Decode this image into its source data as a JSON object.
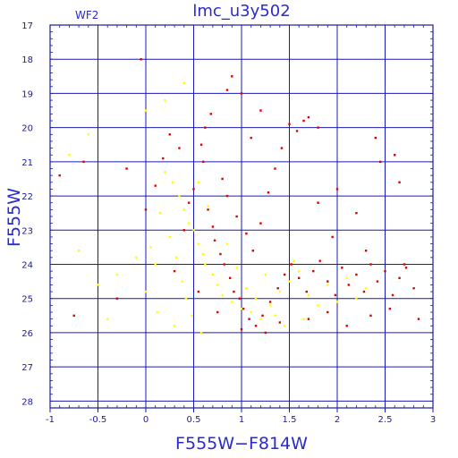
{
  "chart_data": {
    "type": "scatter",
    "title": "lmc_u3y502",
    "annotation": "WF2",
    "xlabel": "F555W−F814W",
    "ylabel": "F555W",
    "xlim": [
      -1,
      3
    ],
    "ylim": [
      28.2,
      17
    ],
    "y_inverted": true,
    "grid": true,
    "x_ticks": [
      -1,
      -0.5,
      0,
      0.5,
      1,
      1.5,
      2,
      2.5,
      3
    ],
    "x_tick_labels": [
      "-1",
      "-0.5",
      "0",
      "0.5",
      "1",
      "1.5",
      "2",
      "2.5",
      "3"
    ],
    "y_ticks": [
      17,
      18,
      19,
      20,
      21,
      22,
      23,
      24,
      25,
      26,
      27,
      28
    ],
    "y_tick_labels": [
      "17",
      "18",
      "19",
      "20",
      "21",
      "22",
      "23",
      "24",
      "25",
      "26",
      "27",
      "28"
    ],
    "series": [
      {
        "color": "#ffff00",
        "points": [
          [
            0.2,
            21.3
          ],
          [
            0.28,
            21.6
          ],
          [
            0.35,
            22.0
          ],
          [
            0.4,
            22.4
          ],
          [
            0.45,
            22.8
          ],
          [
            0.5,
            23.0
          ],
          [
            0.55,
            23.4
          ],
          [
            0.6,
            23.7
          ],
          [
            0.62,
            24.0
          ],
          [
            0.7,
            24.3
          ],
          [
            0.75,
            24.6
          ],
          [
            0.8,
            24.9
          ],
          [
            0.9,
            25.1
          ],
          [
            1.0,
            25.3
          ],
          [
            1.1,
            25.4
          ],
          [
            1.2,
            25.6
          ],
          [
            1.3,
            25.2
          ],
          [
            1.4,
            24.8
          ],
          [
            1.5,
            24.5
          ],
          [
            1.6,
            24.2
          ],
          [
            1.7,
            24.9
          ],
          [
            1.8,
            25.2
          ],
          [
            1.9,
            24.6
          ],
          [
            2.0,
            25.1
          ],
          [
            2.1,
            24.4
          ],
          [
            2.2,
            25.0
          ],
          [
            2.3,
            24.7
          ],
          [
            0.15,
            22.5
          ],
          [
            0.25,
            23.2
          ],
          [
            0.32,
            23.8
          ],
          [
            0.38,
            24.5
          ],
          [
            0.42,
            25.0
          ],
          [
            0.48,
            25.5
          ],
          [
            0.1,
            24.0
          ],
          [
            0.05,
            23.5
          ],
          [
            0.0,
            24.8
          ],
          [
            -0.1,
            23.8
          ],
          [
            -0.3,
            24.3
          ],
          [
            -0.5,
            24.6
          ],
          [
            -0.7,
            23.6
          ],
          [
            -0.8,
            20.8
          ],
          [
            -0.6,
            20.2
          ],
          [
            0.0,
            19.5
          ],
          [
            0.2,
            19.2
          ],
          [
            0.4,
            18.7
          ],
          [
            0.55,
            21.6
          ],
          [
            0.65,
            22.3
          ],
          [
            0.85,
            23.4
          ],
          [
            0.95,
            24.1
          ],
          [
            1.05,
            24.7
          ],
          [
            1.15,
            25.0
          ],
          [
            1.25,
            24.3
          ],
          [
            1.35,
            25.5
          ],
          [
            1.45,
            25.8
          ],
          [
            1.55,
            23.9
          ],
          [
            1.65,
            25.6
          ],
          [
            0.3,
            25.8
          ],
          [
            0.12,
            25.4
          ],
          [
            -0.4,
            25.6
          ],
          [
            0.58,
            26.0
          ]
        ]
      },
      {
        "color": "#dd0000",
        "points": [
          [
            0.65,
            22.4
          ],
          [
            0.7,
            22.9
          ],
          [
            0.72,
            23.3
          ],
          [
            0.78,
            23.7
          ],
          [
            0.82,
            24.0
          ],
          [
            0.88,
            24.4
          ],
          [
            0.92,
            24.8
          ],
          [
            0.98,
            25.0
          ],
          [
            1.02,
            25.3
          ],
          [
            1.08,
            25.6
          ],
          [
            1.15,
            25.8
          ],
          [
            1.22,
            25.5
          ],
          [
            1.3,
            25.1
          ],
          [
            1.38,
            24.7
          ],
          [
            1.45,
            24.3
          ],
          [
            1.52,
            24.0
          ],
          [
            1.6,
            24.4
          ],
          [
            1.68,
            24.8
          ],
          [
            1.75,
            24.2
          ],
          [
            1.82,
            23.9
          ],
          [
            1.9,
            24.5
          ],
          [
            1.98,
            24.9
          ],
          [
            2.05,
            24.1
          ],
          [
            2.12,
            24.6
          ],
          [
            2.2,
            24.3
          ],
          [
            2.28,
            24.8
          ],
          [
            2.35,
            24.0
          ],
          [
            2.42,
            24.5
          ],
          [
            2.5,
            24.2
          ],
          [
            2.58,
            24.9
          ],
          [
            2.65,
            24.4
          ],
          [
            2.72,
            24.1
          ],
          [
            2.8,
            24.7
          ],
          [
            0.6,
            21.0
          ],
          [
            0.58,
            20.5
          ],
          [
            0.62,
            20.0
          ],
          [
            0.68,
            19.6
          ],
          [
            0.8,
            21.5
          ],
          [
            0.85,
            22.0
          ],
          [
            0.95,
            22.6
          ],
          [
            1.05,
            23.1
          ],
          [
            1.12,
            23.6
          ],
          [
            1.2,
            22.8
          ],
          [
            1.28,
            21.9
          ],
          [
            1.35,
            21.2
          ],
          [
            1.42,
            20.6
          ],
          [
            1.5,
            19.9
          ],
          [
            1.58,
            20.1
          ],
          [
            1.65,
            19.8
          ],
          [
            1.2,
            19.5
          ],
          [
            1.1,
            20.3
          ],
          [
            1.0,
            19.0
          ],
          [
            0.9,
            18.5
          ],
          [
            0.5,
            21.8
          ],
          [
            0.45,
            22.2
          ],
          [
            0.4,
            23.0
          ],
          [
            0.35,
            20.6
          ],
          [
            0.25,
            20.2
          ],
          [
            0.18,
            20.9
          ],
          [
            0.1,
            21.7
          ],
          [
            0.0,
            22.4
          ],
          [
            -0.2,
            21.2
          ],
          [
            -0.65,
            21.0
          ],
          [
            -0.9,
            21.4
          ],
          [
            -0.75,
            25.5
          ],
          [
            -0.3,
            25.0
          ],
          [
            0.3,
            24.2
          ],
          [
            0.55,
            24.8
          ],
          [
            0.75,
            25.4
          ],
          [
            1.0,
            25.9
          ],
          [
            1.25,
            26.0
          ],
          [
            1.4,
            25.7
          ],
          [
            1.7,
            25.6
          ],
          [
            1.9,
            25.4
          ],
          [
            2.1,
            25.8
          ],
          [
            2.35,
            25.5
          ],
          [
            2.55,
            25.3
          ],
          [
            2.7,
            24.0
          ],
          [
            2.85,
            25.6
          ],
          [
            2.45,
            21.0
          ],
          [
            2.6,
            20.8
          ],
          [
            2.4,
            20.3
          ],
          [
            2.2,
            22.5
          ],
          [
            2.0,
            21.8
          ],
          [
            1.8,
            22.2
          ],
          [
            1.95,
            23.2
          ],
          [
            2.3,
            23.6
          ],
          [
            2.65,
            21.6
          ],
          [
            -0.05,
            18.0
          ],
          [
            0.85,
            18.9
          ],
          [
            1.8,
            20.0
          ],
          [
            1.7,
            19.7
          ]
        ]
      }
    ]
  }
}
